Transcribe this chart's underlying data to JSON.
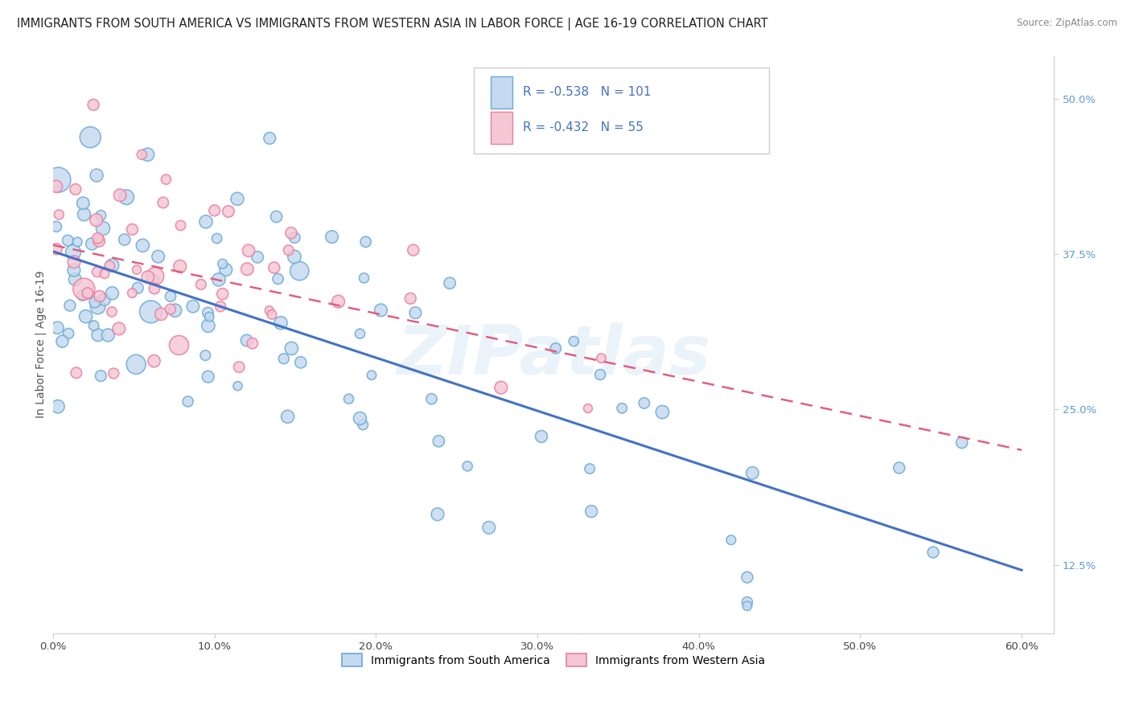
{
  "title": "IMMIGRANTS FROM SOUTH AMERICA VS IMMIGRANTS FROM WESTERN ASIA IN LABOR FORCE | AGE 16-19 CORRELATION CHART",
  "source": "Source: ZipAtlas.com",
  "ylabel": "In Labor Force | Age 16-19",
  "xlim": [
    0.0,
    0.62
  ],
  "ylim": [
    0.07,
    0.535
  ],
  "ytick_positions": [
    0.125,
    0.25,
    0.375,
    0.5
  ],
  "ytick_labels": [
    "12.5%",
    "25.0%",
    "37.5%",
    "50.0%"
  ],
  "xtick_positions": [
    0.0,
    0.1,
    0.2,
    0.3,
    0.4,
    0.5,
    0.6
  ],
  "xtick_labels": [
    "0.0%",
    "10.0%",
    "20.0%",
    "30.0%",
    "40.0%",
    "50.0%",
    "60.0%"
  ],
  "legend_r1": "R = -0.538",
  "legend_n1": "N = 101",
  "legend_r2": "R = -0.432",
  "legend_n2": "N = 55",
  "color_blue_face": "#c5d9f0",
  "color_blue_edge": "#6aaad4",
  "color_pink_face": "#f5c6d4",
  "color_pink_edge": "#e87fa0",
  "line_color_blue": "#4472c4",
  "line_color_pink": "#e06080",
  "tick_color": "#5b9bd5",
  "watermark_text": "ZIPatlas",
  "label_blue": "Immigrants from South America",
  "label_pink": "Immigrants from Western Asia",
  "title_fontsize": 10.5,
  "source_fontsize": 8.5,
  "tick_fontsize": 9.5,
  "legend_fontsize": 11,
  "ylabel_fontsize": 10,
  "blue_intercept": 0.378,
  "blue_slope": -0.38,
  "pink_intercept": 0.375,
  "pink_slope": -0.3
}
